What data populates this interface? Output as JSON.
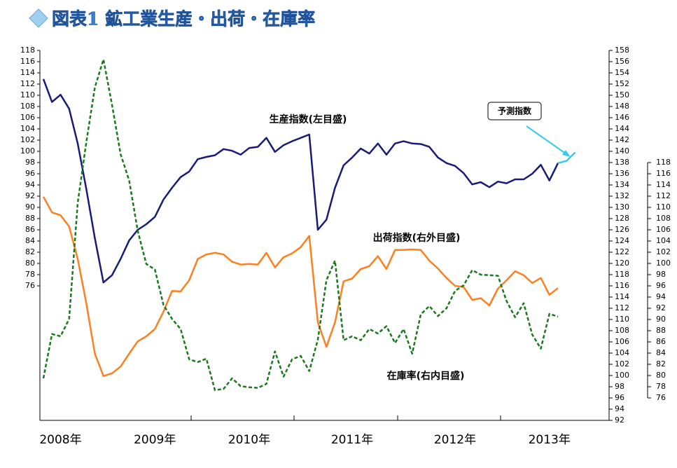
{
  "chart_data": {
    "type": "line",
    "title": "図表1 鉱工業生産・出荷・在庫率",
    "categories": [
      null,
      null,
      "2008年",
      null,
      null,
      null,
      null,
      null,
      null,
      null,
      null,
      null,
      null,
      "2009年",
      null,
      null,
      null,
      null,
      null,
      null,
      null,
      null,
      null,
      null,
      "2010年",
      null,
      null,
      null,
      null,
      null,
      null,
      null,
      null,
      null,
      null,
      null,
      "2011年",
      null,
      null,
      null,
      null,
      null,
      null,
      null,
      null,
      null,
      null,
      null,
      "2012年",
      null,
      null,
      null,
      null,
      null,
      null,
      null,
      null,
      null,
      null,
      "2013年",
      null,
      null,
      null
    ],
    "series": [
      {
        "name": "生産指数(左目盛)",
        "color": "#1a1a78",
        "axis": "y",
        "dashed": false,
        "values": [
          112.9,
          108.8,
          110.1,
          107.6,
          101.4,
          93.3,
          84.5,
          76.6,
          77.9,
          80.8,
          84.1,
          86,
          87,
          88.3,
          91.4,
          93.5,
          95.4,
          96.4,
          98.6,
          99,
          99.3,
          100.4,
          100.1,
          99.4,
          100.6,
          100.8,
          102.4,
          99.9,
          101.1,
          101.8,
          102.4,
          103,
          86,
          87.8,
          93.5,
          97.5,
          98.9,
          100.5,
          99.6,
          101.4,
          99.4,
          101.4,
          101.8,
          101.4,
          101.3,
          100.8,
          98.9,
          97.9,
          97.4,
          96.1,
          94.1,
          94.5,
          93.6,
          94.6,
          94.3,
          95,
          95,
          96,
          97.6,
          94.8,
          97.9,
          null,
          null
        ]
      },
      {
        "name": "予測指数",
        "color": "#33ccee",
        "axis": "y",
        "dashed": false,
        "values": [
          null,
          null,
          null,
          null,
          null,
          null,
          null,
          null,
          null,
          null,
          null,
          null,
          null,
          null,
          null,
          null,
          null,
          null,
          null,
          null,
          null,
          null,
          null,
          null,
          null,
          null,
          null,
          null,
          null,
          null,
          null,
          null,
          null,
          null,
          null,
          null,
          null,
          null,
          null,
          null,
          null,
          null,
          null,
          null,
          null,
          null,
          null,
          null,
          null,
          null,
          null,
          null,
          null,
          null,
          null,
          null,
          null,
          null,
          null,
          null,
          97.9,
          98.3,
          99.8
        ]
      },
      {
        "name": "出荷指数(右外目盛)",
        "color": "#ff7f1e",
        "axis": "y2",
        "dashed": false,
        "values": [
          131.9,
          129.1,
          128.6,
          126.6,
          120.8,
          112.9,
          103.9,
          99.9,
          100.4,
          101.6,
          103.9,
          106.1,
          107,
          108.3,
          111.4,
          115.1,
          115,
          117,
          120.8,
          121.6,
          121.9,
          121.6,
          120.3,
          119.8,
          119.9,
          119.8,
          121.9,
          119.3,
          121.1,
          121.8,
          122.9,
          124.9,
          109.5,
          105.1,
          109.5,
          116.8,
          117.3,
          119,
          119.5,
          121.3,
          119,
          122.4,
          122.4,
          122.5,
          122.4,
          120.5,
          119.1,
          117.4,
          116,
          115.8,
          113.5,
          113.8,
          112.5,
          115.5,
          117,
          118.6,
          117.9,
          116.5,
          117.4,
          114.4,
          115.6,
          null,
          null
        ]
      },
      {
        "name": "在庫率(右内目盛)",
        "color": "#1a7a1a",
        "axis": "y3",
        "dashed": true,
        "values": [
          79.5,
          87.4,
          87,
          90.1,
          110.8,
          121.6,
          131.4,
          136.4,
          128.3,
          119.5,
          114.8,
          105.8,
          99.9,
          98.9,
          92.6,
          90.1,
          88.3,
          82.9,
          82.4,
          83,
          77.4,
          77.6,
          79.5,
          78.1,
          77.9,
          77.8,
          78.5,
          84.3,
          79.8,
          82.9,
          83.5,
          80.8,
          86.4,
          97,
          100.5,
          86.3,
          87,
          86.3,
          88.3,
          87.5,
          88.8,
          85.8,
          88.3,
          83.9,
          90.9,
          92.4,
          90.6,
          92,
          95.1,
          96.1,
          98.8,
          98,
          97.9,
          97.8,
          93.3,
          90.4,
          92.9,
          87.3,
          84.8,
          91,
          90.5,
          null,
          null
        ]
      }
    ],
    "ylim": [
      52,
      118
    ],
    "yticks": [
      76,
      78,
      80,
      82,
      84,
      86,
      88,
      90,
      92,
      94,
      96,
      98,
      100,
      102,
      104,
      106,
      108,
      110,
      112,
      114,
      116,
      118
    ],
    "y2lim": [
      92,
      158
    ],
    "y2ticks": [
      92,
      94,
      96,
      98,
      100,
      102,
      104,
      106,
      108,
      110,
      112,
      114,
      116,
      118,
      120,
      122,
      124,
      126,
      128,
      130,
      132,
      134,
      136,
      138,
      140,
      142,
      144,
      146,
      148,
      150,
      152,
      154,
      156,
      158
    ],
    "y3lim": [
      72,
      138
    ],
    "y3ticks": [
      76,
      78,
      80,
      82,
      84,
      86,
      88,
      90,
      92,
      94,
      96,
      98,
      100,
      102,
      104,
      106,
      108,
      110,
      112,
      114,
      116,
      118
    ]
  }
}
